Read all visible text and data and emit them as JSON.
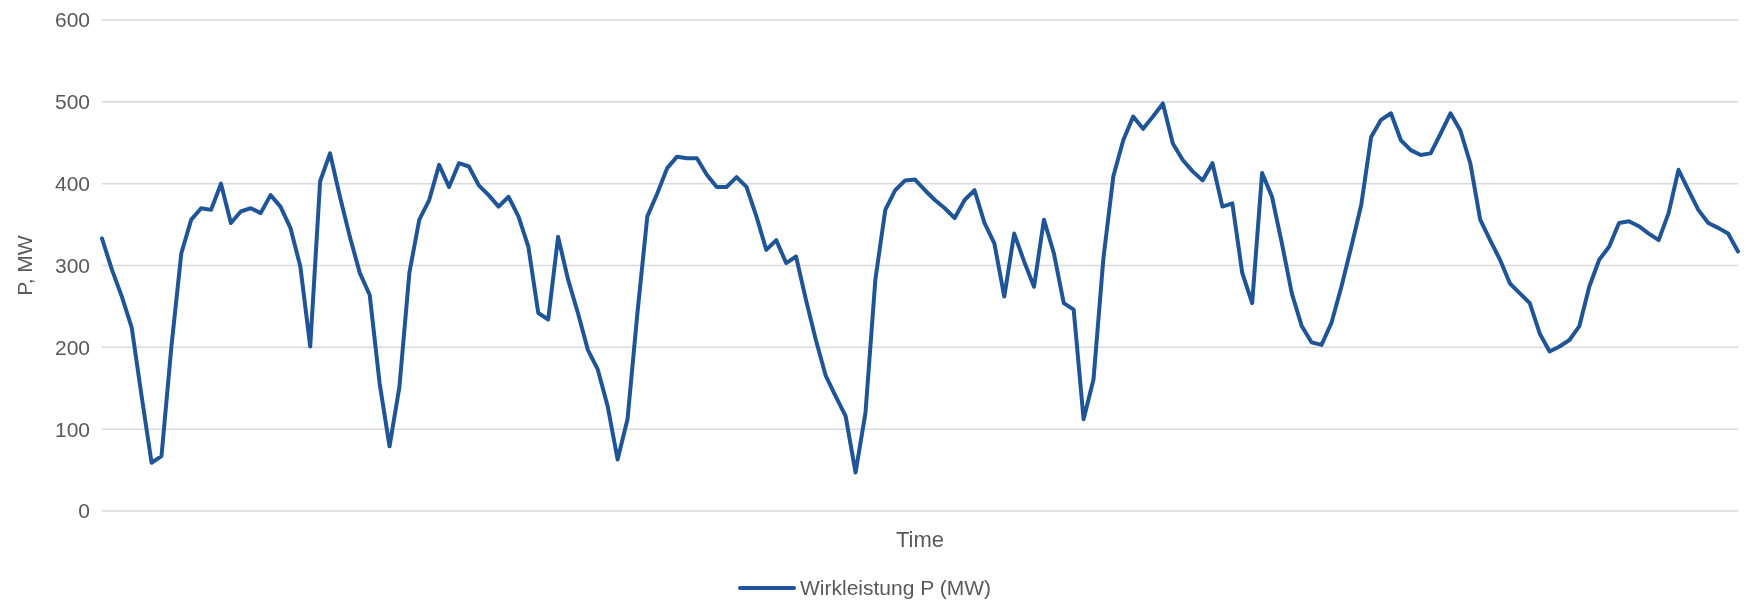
{
  "chart_data": {
    "type": "line",
    "xlabel": "Time",
    "ylabel": "P, MW",
    "ylim": [
      0,
      600
    ],
    "yticks": [
      0,
      100,
      200,
      300,
      400,
      500,
      600
    ],
    "grid": "y",
    "legend": "bottom",
    "categories": [
      null,
      null,
      null,
      null,
      null,
      null,
      null,
      null,
      null,
      null,
      null,
      null,
      null,
      null,
      null,
      null,
      null,
      null,
      null,
      null,
      null,
      null,
      null,
      null,
      null,
      null,
      null,
      null,
      null,
      null,
      null,
      null,
      null,
      null,
      null,
      null,
      null,
      null,
      null,
      null,
      null,
      null,
      null,
      null,
      null,
      null,
      null,
      null,
      null,
      null,
      null,
      null,
      null,
      null,
      null,
      null,
      null,
      null,
      null,
      null,
      null,
      null,
      null,
      null,
      null,
      null,
      null,
      null,
      null,
      null,
      null,
      null,
      null,
      null,
      null,
      null,
      null,
      null,
      null,
      null,
      null,
      null,
      null,
      null,
      null,
      null,
      null,
      null,
      null,
      null,
      null,
      null,
      null,
      null,
      null,
      null,
      null,
      null,
      null,
      null,
      null,
      null,
      null,
      null,
      null,
      null,
      null,
      null,
      null,
      null,
      null,
      null,
      null,
      null,
      null,
      null,
      null,
      null,
      null,
      null,
      null,
      null,
      null,
      null,
      null,
      null,
      null,
      null,
      null,
      null,
      null,
      null,
      null,
      null,
      null,
      null,
      null,
      null,
      null,
      null,
      null,
      null,
      null,
      null,
      null,
      null,
      null,
      null,
      null,
      null,
      null,
      null,
      null,
      null,
      null,
      null,
      null,
      null,
      null,
      null,
      null,
      null,
      null,
      null,
      null,
      null
    ],
    "series": [
      {
        "name": "Wirkleistung P (MW)",
        "color": "#1f5596",
        "values": [
          333,
          295,
          262,
          224,
          140,
          59,
          67,
          201,
          315,
          356,
          370,
          368,
          400,
          352,
          366,
          370,
          364,
          386,
          372,
          346,
          299,
          201,
          403,
          437,
          384,
          335,
          291,
          264,
          156,
          79,
          152,
          291,
          356,
          380,
          423,
          396,
          425,
          421,
          398,
          386,
          372,
          384,
          360,
          323,
          242,
          234,
          335,
          283,
          242,
          197,
          173,
          128,
          63,
          112,
          242,
          360,
          388,
          419,
          433,
          431,
          431,
          411,
          396,
          396,
          408,
          396,
          360,
          319,
          331,
          303,
          311,
          258,
          209,
          165,
          140,
          116,
          47,
          120,
          283,
          368,
          392,
          404,
          405,
          392,
          380,
          370,
          358,
          380,
          392,
          352,
          327,
          262,
          339,
          305,
          274,
          356,
          315,
          254,
          246,
          112,
          161,
          309,
          409,
          453,
          482,
          467,
          482,
          498,
          449,
          429,
          415,
          404,
          425,
          372,
          376,
          291,
          254,
          413,
          384,
          327,
          266,
          226,
          206,
          203,
          230,
          274,
          323,
          374,
          457,
          478,
          486,
          453,
          441,
          435,
          437,
          461,
          486,
          465,
          425,
          356,
          331,
          307,
          278,
          266,
          254,
          217,
          195,
          201,
          209,
          226,
          274,
          307,
          323,
          352,
          354,
          348,
          339,
          331,
          364,
          417,
          392,
          368,
          352,
          346,
          339,
          317
        ]
      }
    ]
  }
}
